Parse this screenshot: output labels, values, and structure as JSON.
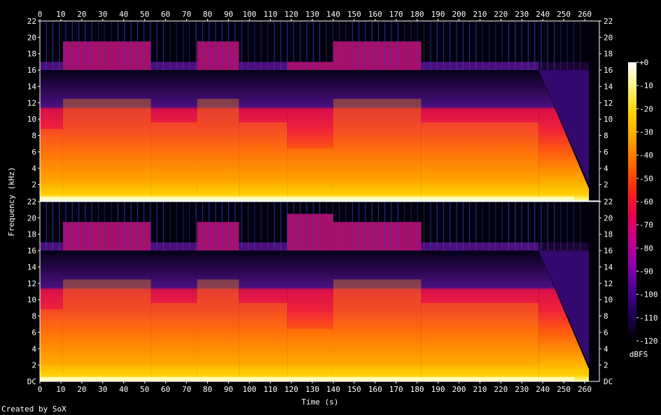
{
  "chart_data": {
    "type": "heatmap",
    "title": "",
    "xlabel": "Time (s)",
    "ylabel": "Frequency (kHz)",
    "xlim": [
      0,
      267
    ],
    "x_ticks": [
      "0",
      "10",
      "20",
      "30",
      "40",
      "50",
      "60",
      "70",
      "80",
      "90",
      "100",
      "110",
      "120",
      "130",
      "140",
      "150",
      "160",
      "170",
      "180",
      "190",
      "200",
      "210",
      "220",
      "230",
      "240",
      "250",
      "260"
    ],
    "ylim_khz": [
      0,
      22
    ],
    "y_ticks": [
      "2",
      "4",
      "6",
      "8",
      "10",
      "12",
      "14",
      "16",
      "18",
      "20",
      "22"
    ],
    "y_bottom_label": "DC",
    "channels": [
      {
        "name": "",
        "cutoff_khz": 16,
        "segments": [
          {
            "t0": 0,
            "t1": 11,
            "level": "lower"
          },
          {
            "t0": 11,
            "t1": 53,
            "level": "high"
          },
          {
            "t0": 53,
            "t1": 75,
            "level": "mid"
          },
          {
            "t0": 75,
            "t1": 95,
            "level": "high"
          },
          {
            "t0": 95,
            "t1": 118,
            "level": "mid"
          },
          {
            "t0": 118,
            "t1": 140,
            "level": "dip"
          },
          {
            "t0": 140,
            "t1": 182,
            "level": "high"
          },
          {
            "t0": 182,
            "t1": 238,
            "level": "mid"
          },
          {
            "t0": 238,
            "t1": 262,
            "level": "fade"
          }
        ]
      },
      {
        "name": "",
        "cutoff_khz": 16,
        "segments": [
          {
            "t0": 0,
            "t1": 11,
            "level": "lower"
          },
          {
            "t0": 11,
            "t1": 53,
            "level": "high"
          },
          {
            "t0": 53,
            "t1": 75,
            "level": "mid"
          },
          {
            "t0": 75,
            "t1": 95,
            "level": "high"
          },
          {
            "t0": 95,
            "t1": 118,
            "level": "mid"
          },
          {
            "t0": 118,
            "t1": 140,
            "level": "dip"
          },
          {
            "t0": 140,
            "t1": 182,
            "level": "high"
          },
          {
            "t0": 182,
            "t1": 238,
            "level": "mid"
          },
          {
            "t0": 238,
            "t1": 262,
            "level": "fade"
          }
        ]
      }
    ],
    "colorbar": {
      "label": "dBFS",
      "range": [
        -120,
        0
      ],
      "ticks": [
        "+0",
        "-10",
        "-20",
        "-30",
        "-40",
        "-50",
        "-60",
        "-70",
        "-80",
        "-90",
        "-100",
        "-110",
        "-120"
      ],
      "colors": [
        "#000000",
        "#1a0050",
        "#4b0092",
        "#8a00a8",
        "#c4008a",
        "#e8004a",
        "#ff2a10",
        "#ff6a00",
        "#ffa200",
        "#ffd400",
        "#fff27a",
        "#ffffff"
      ]
    }
  },
  "footer": {
    "credit": "Created by SoX"
  }
}
